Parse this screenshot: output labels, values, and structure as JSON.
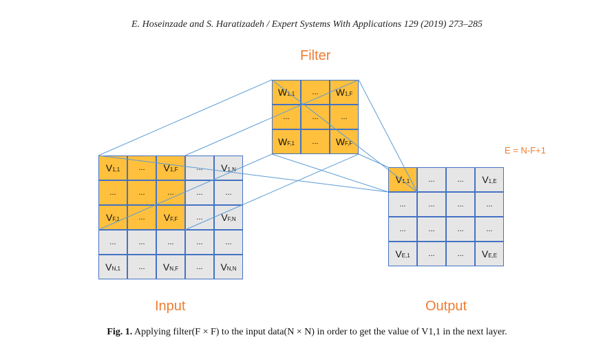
{
  "header": "E. Hoseinzade and S. Haratizadeh / Expert Systems With Applications 129 (2019) 273–285",
  "filter_title": "Filter",
  "input_title": "Input",
  "output_title": "Output",
  "formula": "E = N-F+1",
  "filter_cells": [
    [
      {
        "t": "W",
        "s": "1,1",
        "hl": true
      },
      {
        "t": "...",
        "s": "",
        "hl": true
      },
      {
        "t": "W",
        "s": "1,F",
        "hl": true
      }
    ],
    [
      {
        "t": "...",
        "s": "",
        "hl": true
      },
      {
        "t": "...",
        "s": "",
        "hl": true
      },
      {
        "t": "...",
        "s": "",
        "hl": true
      }
    ],
    [
      {
        "t": "W",
        "s": "F,1",
        "hl": true
      },
      {
        "t": "...",
        "s": "",
        "hl": true
      },
      {
        "t": "W",
        "s": "F,F",
        "hl": true
      }
    ]
  ],
  "input_cells": [
    [
      {
        "t": "V",
        "s": "1,1",
        "hl": true
      },
      {
        "t": "...",
        "s": "",
        "hl": true
      },
      {
        "t": "V",
        "s": "1,F",
        "hl": true
      },
      {
        "t": "...",
        "s": "",
        "hl": false
      },
      {
        "t": "V",
        "s": "1,N",
        "hl": false
      }
    ],
    [
      {
        "t": "...",
        "s": "",
        "hl": true
      },
      {
        "t": "...",
        "s": "",
        "hl": true
      },
      {
        "t": "...",
        "s": "",
        "hl": true
      },
      {
        "t": "...",
        "s": "",
        "hl": false
      },
      {
        "t": "...",
        "s": "",
        "hl": false
      }
    ],
    [
      {
        "t": "V",
        "s": "F,1",
        "hl": true
      },
      {
        "t": "...",
        "s": "",
        "hl": true
      },
      {
        "t": "V",
        "s": "F,F",
        "hl": true
      },
      {
        "t": "...",
        "s": "",
        "hl": false
      },
      {
        "t": "V",
        "s": "F,N",
        "hl": false
      }
    ],
    [
      {
        "t": "...",
        "s": "",
        "hl": false
      },
      {
        "t": "...",
        "s": "",
        "hl": false
      },
      {
        "t": "...",
        "s": "",
        "hl": false
      },
      {
        "t": "...",
        "s": "",
        "hl": false
      },
      {
        "t": "...",
        "s": "",
        "hl": false
      }
    ],
    [
      {
        "t": "V",
        "s": "N,1",
        "hl": false
      },
      {
        "t": "...",
        "s": "",
        "hl": false
      },
      {
        "t": "V",
        "s": "N,F",
        "hl": false
      },
      {
        "t": "...",
        "s": "",
        "hl": false
      },
      {
        "t": "V",
        "s": "N,N",
        "hl": false
      }
    ]
  ],
  "output_cells": [
    [
      {
        "t": "V",
        "s": "1,1",
        "hl": true
      },
      {
        "t": "...",
        "s": "",
        "hl": false
      },
      {
        "t": "...",
        "s": "",
        "hl": false
      },
      {
        "t": "V",
        "s": "1,E",
        "hl": false
      }
    ],
    [
      {
        "t": "...",
        "s": "",
        "hl": false
      },
      {
        "t": "...",
        "s": "",
        "hl": false
      },
      {
        "t": "...",
        "s": "",
        "hl": false
      },
      {
        "t": "...",
        "s": "",
        "hl": false
      }
    ],
    [
      {
        "t": "...",
        "s": "",
        "hl": false
      },
      {
        "t": "...",
        "s": "",
        "hl": false
      },
      {
        "t": "...",
        "s": "",
        "hl": false
      },
      {
        "t": "...",
        "s": "",
        "hl": false
      }
    ],
    [
      {
        "t": "V",
        "s": "E,1",
        "hl": false
      },
      {
        "t": "...",
        "s": "",
        "hl": false
      },
      {
        "t": "...",
        "s": "",
        "hl": false
      },
      {
        "t": "V",
        "s": "E,E",
        "hl": false
      }
    ]
  ],
  "caption": {
    "label": "Fig. 1.",
    "text": "Applying filter(F × F) to the input data(N × N) in order to get the value of V1,1 in the next layer."
  },
  "colors": {
    "accent": "#ED7D31",
    "highlight": "#FFC03D",
    "cell": "#E6E6E6",
    "border": "#4472C4"
  }
}
